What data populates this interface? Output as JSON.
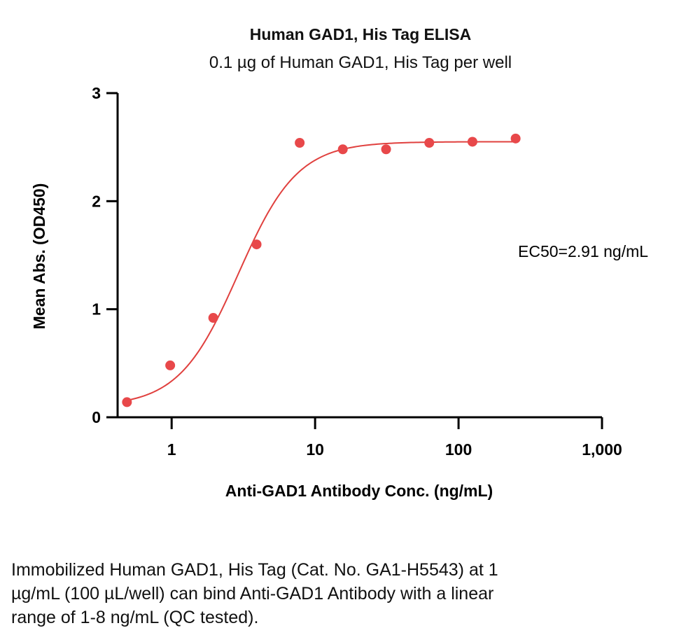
{
  "chart_data": {
    "type": "scatter",
    "title": "Human GAD1, His Tag ELISA",
    "subtitle": "0.1 µg of Human GAD1, His Tag per well",
    "xlabel": "Anti-GAD1 Antibody Conc. (ng/mL)",
    "ylabel": "Mean Abs. (OD450)",
    "x_scale": "log",
    "xlim": [
      0.42,
      1000
    ],
    "ylim": [
      0,
      3
    ],
    "x_ticks": [
      1,
      10,
      100,
      1000
    ],
    "x_tick_labels": [
      "1",
      "10",
      "100",
      "1,000"
    ],
    "y_ticks": [
      0,
      1,
      2,
      3
    ],
    "y_tick_labels": [
      "0",
      "1",
      "2",
      "3"
    ],
    "series": [
      {
        "x": [
          0.488,
          0.977,
          1.95,
          3.91,
          7.81,
          15.6,
          31.25,
          62.5,
          125,
          250
        ],
        "y": [
          0.14,
          0.48,
          0.92,
          1.6,
          2.54,
          2.48,
          2.48,
          2.54,
          2.55,
          2.58
        ],
        "color": "#e8484a"
      }
    ],
    "fit": {
      "model": "4PL",
      "bottom": 0.1,
      "top": 2.55,
      "ec50": 2.91,
      "hill": 2.1,
      "x_range": [
        0.488,
        250
      ],
      "color": "#e0403e"
    },
    "annotation": "EC50=2.91 ng/mL",
    "grid": false
  },
  "caption": {
    "line1": "Immobilized Human GAD1, His Tag (Cat. No. GA1-H5543) at 1",
    "line2": "µg/mL (100 µL/well) can bind Anti-GAD1 Antibody with a linear",
    "line3": "range of 1-8 ng/mL (QC tested)."
  }
}
